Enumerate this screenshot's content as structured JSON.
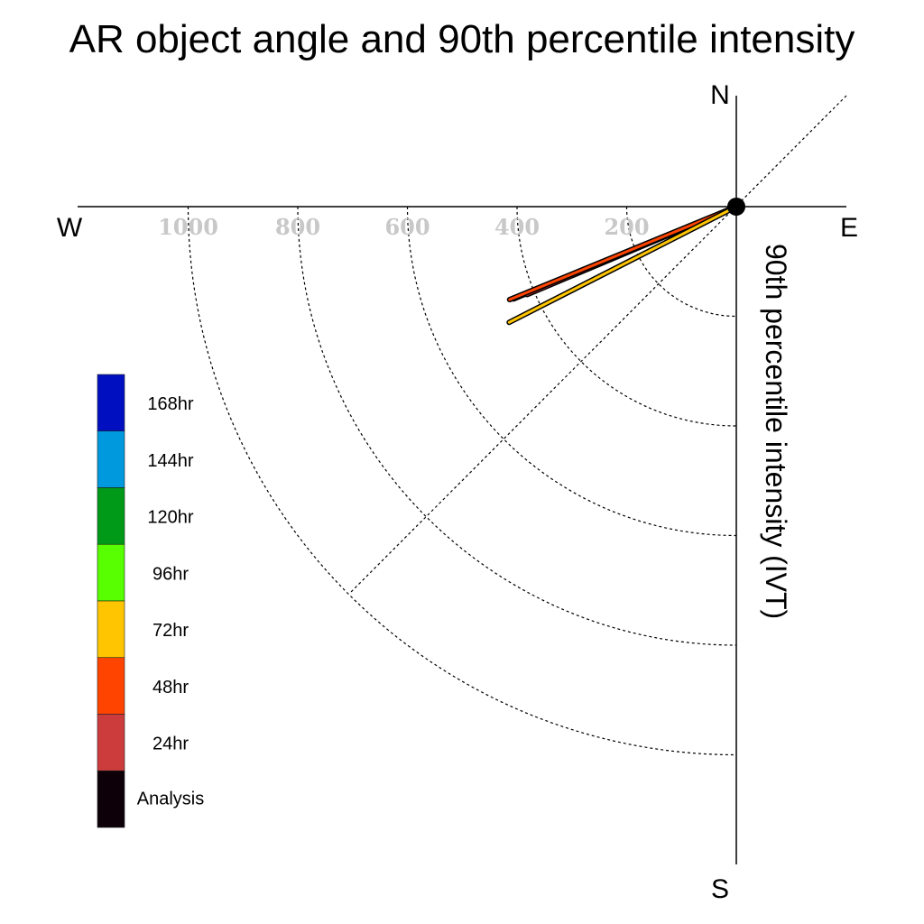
{
  "chart_data": {
    "type": "polar-vector",
    "title": "AR object angle and 90th percentile intensity",
    "radial_label": "90th percentile intensity (IVT)",
    "compass": {
      "north": "N",
      "south": "S",
      "east": "E",
      "west": "W"
    },
    "radial_ticks": [
      200,
      400,
      600,
      800,
      1000
    ],
    "radial_tick_labels": [
      "200",
      "400",
      "600",
      "800",
      "1000"
    ],
    "radial_range": [
      0,
      1200
    ],
    "legend": [
      {
        "label": "168hr",
        "color": "#0010c0"
      },
      {
        "label": "144hr",
        "color": "#0099de"
      },
      {
        "label": "120hr",
        "color": "#009a18"
      },
      {
        "label": "96hr",
        "color": "#57ff00"
      },
      {
        "label": "72hr",
        "color": "#ffc500"
      },
      {
        "label": "48hr",
        "color": "#ff4400"
      },
      {
        "label": "24hr",
        "color": "#cd3c3c"
      },
      {
        "label": "Analysis",
        "color": "#0d0009"
      }
    ],
    "series": [
      {
        "name": "Analysis",
        "color": "#0d0009",
        "direction_deg": 247.5,
        "intensity": 440
      },
      {
        "name": "24hr",
        "color": "#cd3c3c",
        "direction_deg": 247.2,
        "intensity": 414
      },
      {
        "name": "48hr",
        "color": "#ff4400",
        "direction_deg": 247.7,
        "intensity": 447
      },
      {
        "name": "72hr",
        "color": "#ffc500",
        "direction_deg": 243.0,
        "intensity": 465
      }
    ]
  }
}
